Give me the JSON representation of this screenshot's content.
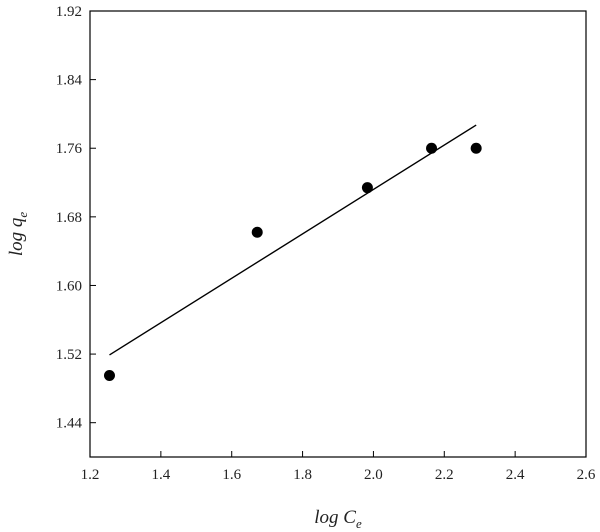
{
  "chart_data": {
    "type": "scatter",
    "title": "",
    "xlabel": {
      "base": "log C",
      "subscript": "e"
    },
    "ylabel": {
      "base": "log q",
      "subscript": "e"
    },
    "xlim": [
      1.2,
      2.6
    ],
    "ylim": [
      1.4,
      1.92
    ],
    "xticks": [
      "1.2",
      "1.4",
      "1.6",
      "1.8",
      "2.0",
      "2.2",
      "2.4",
      "2.6"
    ],
    "yticks": [
      "1.44",
      "1.52",
      "1.60",
      "1.68",
      "1.76",
      "1.84",
      "1.92"
    ],
    "grid": false,
    "legend": "none",
    "series": [
      {
        "kind": "points",
        "color": "#000000",
        "points": [
          {
            "x": 1.255,
            "y": 1.495
          },
          {
            "x": 1.672,
            "y": 1.662
          },
          {
            "x": 1.983,
            "y": 1.714
          },
          {
            "x": 2.164,
            "y": 1.76
          },
          {
            "x": 2.29,
            "y": 1.76
          }
        ]
      },
      {
        "kind": "fit-line",
        "color": "#000000",
        "points": [
          {
            "x": 1.255,
            "y": 1.519
          },
          {
            "x": 2.29,
            "y": 1.787
          }
        ]
      }
    ]
  }
}
